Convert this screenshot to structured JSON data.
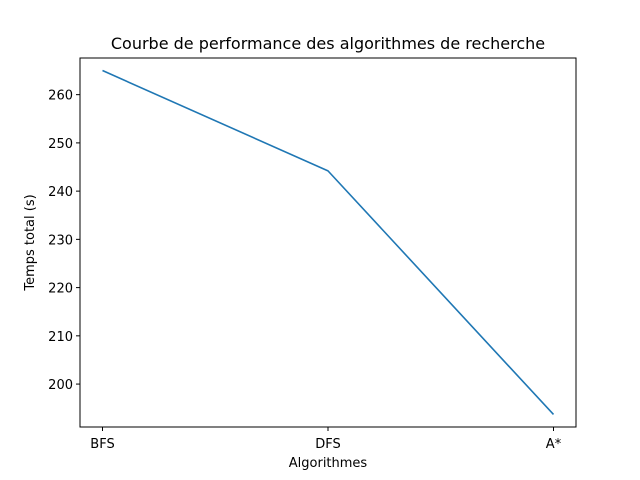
{
  "chart_data": {
    "type": "line",
    "title": "Courbe de performance des algorithmes de recherche",
    "xlabel": "Algorithmes",
    "ylabel": "Temps total (s)",
    "categories": [
      "BFS",
      "DFS",
      "A*"
    ],
    "series": [
      {
        "values": [
          265.0,
          244.2,
          193.7
        ],
        "color": "#1f77b4"
      }
    ],
    "ylim": [
      191.1,
      267.6
    ],
    "yticks": [
      200,
      210,
      220,
      230,
      240,
      250,
      260
    ],
    "grid": false,
    "legend": "none"
  }
}
